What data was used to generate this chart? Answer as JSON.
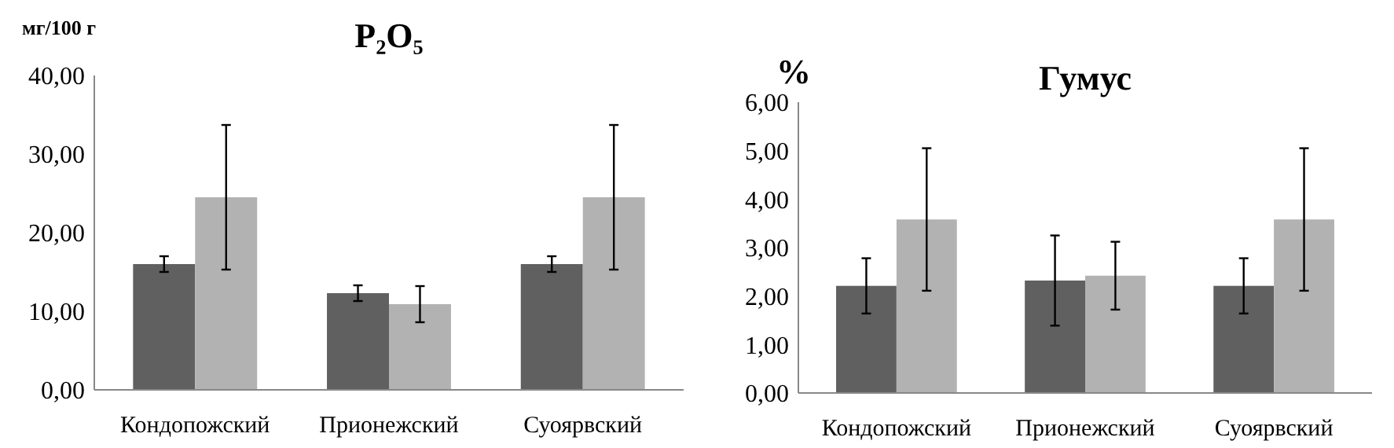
{
  "chart_data": [
    {
      "type": "bar",
      "title": "P₂O₅",
      "ylabel": "мг/100 г",
      "categories": [
        "Кондопожский",
        "Прионежский",
        "Суоярвский"
      ],
      "series": [
        {
          "color": "#606060",
          "values": [
            16.0,
            12.3,
            16.0
          ],
          "errors": [
            1.0,
            1.0,
            1.0
          ]
        },
        {
          "color": "#b2b2b2",
          "values": [
            24.5,
            10.9,
            24.5
          ],
          "errors": [
            9.2,
            2.3,
            9.2
          ]
        }
      ],
      "ylim": [
        0,
        40
      ],
      "yticks": [
        {
          "value": 0,
          "label": "0,00"
        },
        {
          "value": 10,
          "label": "10,00"
        },
        {
          "value": 20,
          "label": "20,00"
        },
        {
          "value": 30,
          "label": "30,00"
        },
        {
          "value": 40,
          "label": "40,00"
        }
      ],
      "grid": false
    },
    {
      "type": "bar",
      "title": "Гумус",
      "ylabel": "%",
      "categories": [
        "Кондопожский",
        "Прионежский",
        "Суоярвский"
      ],
      "series": [
        {
          "color": "#606060",
          "values": [
            2.21,
            2.32,
            2.21
          ],
          "errors": [
            0.57,
            0.93,
            0.57
          ]
        },
        {
          "color": "#b2b2b2",
          "values": [
            3.58,
            2.42,
            3.58
          ],
          "errors": [
            1.47,
            0.7,
            1.47
          ]
        }
      ],
      "ylim": [
        0,
        6
      ],
      "yticks": [
        {
          "value": 0,
          "label": "0,00"
        },
        {
          "value": 1,
          "label": "1,00"
        },
        {
          "value": 2,
          "label": "2,00"
        },
        {
          "value": 3,
          "label": "3,00"
        },
        {
          "value": 4,
          "label": "4,00"
        },
        {
          "value": 5,
          "label": "5,00"
        },
        {
          "value": 6,
          "label": "6,00"
        }
      ],
      "grid": false
    }
  ]
}
